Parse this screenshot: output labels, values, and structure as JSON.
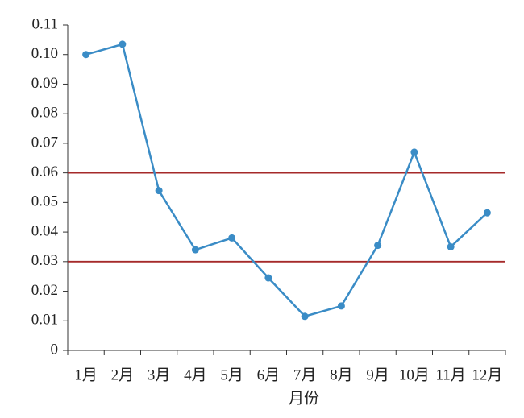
{
  "chart_data": {
    "type": "line",
    "x_label": "月份",
    "categories": [
      "1月",
      "2月",
      "3月",
      "4月",
      "5月",
      "6月",
      "7月",
      "8月",
      "9月",
      "10月",
      "11月",
      "12月"
    ],
    "series": [
      {
        "color": "#3a8cc6",
        "values": [
          0.1,
          0.1035,
          0.054,
          0.034,
          0.038,
          0.0245,
          0.0115,
          0.015,
          0.0355,
          0.067,
          0.035,
          0.0465
        ]
      }
    ],
    "reference_lines": [
      0.06,
      0.03
    ],
    "reference_color": "#a52a2a",
    "ylim": [
      0,
      0.11
    ],
    "yticks": [
      0,
      0.01,
      0.02,
      0.03,
      0.04,
      0.05,
      0.06,
      0.07,
      0.08,
      0.09,
      {
        "value": 0.1,
        "label": "0.10"
      },
      0.11
    ]
  }
}
